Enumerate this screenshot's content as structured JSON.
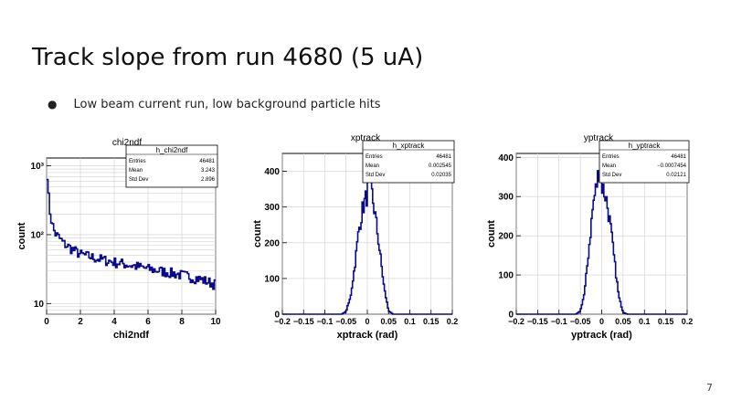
{
  "slide": {
    "title": "Track slope from run 4680 (5 uA)",
    "bullet": "Low beam current run, low background particle hits",
    "bullet_symbol": "●",
    "page_number": "7"
  },
  "chart_data": [
    {
      "type": "line",
      "title": "chi2ndf",
      "xlabel": "chi2ndf",
      "ylabel": "count",
      "xlim": [
        0,
        10
      ],
      "ylim": [
        7,
        1300
      ],
      "yscale": "log",
      "x_ticks": [
        "0",
        "2",
        "4",
        "6",
        "8",
        "10"
      ],
      "y_ticks": [
        "10",
        "10²",
        "10³"
      ],
      "grid": true,
      "color": "#0a0a8a",
      "stats": {
        "name": "h_chi2ndf",
        "rows": [
          {
            "label": "Entries",
            "value": "46481"
          },
          {
            "label": "Mean",
            "value": "3.243"
          },
          {
            "label": "Std Dev",
            "value": "2.896"
          }
        ]
      },
      "x": [
        0,
        0.05,
        0.1,
        0.15,
        0.2,
        0.3,
        0.4,
        0.5,
        0.75,
        1,
        1.5,
        2,
        3,
        4,
        5,
        6,
        7,
        8,
        9,
        10
      ],
      "y": [
        1100,
        700,
        420,
        280,
        220,
        160,
        125,
        105,
        90,
        75,
        62,
        52,
        45,
        40,
        36,
        32,
        29,
        26,
        23,
        19
      ]
    },
    {
      "type": "line",
      "title": "xptrack",
      "xlabel": "xptrack (rad)",
      "ylabel": "count",
      "xlim": [
        -0.2,
        0.2
      ],
      "ylim": [
        0,
        450
      ],
      "x_ticks": [
        "−0.2",
        "−0.15",
        "−0.1",
        "−0.05",
        "0",
        "0.05",
        "0.1",
        "0.15",
        "0.2"
      ],
      "y_ticks": [
        "0",
        "100",
        "200",
        "300",
        "400"
      ],
      "grid": true,
      "color": "#0a0a8a",
      "stats": {
        "name": "h_xptrack",
        "rows": [
          {
            "label": "Entries",
            "value": "46481"
          },
          {
            "label": "Mean",
            "value": "0.002545"
          },
          {
            "label": "Std Dev",
            "value": "0.02035"
          }
        ]
      },
      "x": [
        -0.06,
        -0.05,
        -0.04,
        -0.03,
        -0.02,
        -0.01,
        0,
        0.005,
        0.01,
        0.02,
        0.03,
        0.04,
        0.05,
        0.06
      ],
      "y": [
        0,
        8,
        45,
        130,
        235,
        300,
        335,
        410,
        345,
        265,
        170,
        70,
        10,
        0
      ]
    },
    {
      "type": "line",
      "title": "yptrack",
      "xlabel": "yptrack (rad)",
      "ylabel": "count",
      "xlim": [
        -0.2,
        0.2
      ],
      "ylim": [
        0,
        410
      ],
      "x_ticks": [
        "−0.2",
        "−0.15",
        "−0.1",
        "−0.05",
        "0",
        "0.05",
        "0.1",
        "0.15",
        "0.2"
      ],
      "y_ticks": [
        "0",
        "100",
        "200",
        "300",
        "400"
      ],
      "grid": true,
      "color": "#0a0a8a",
      "stats": {
        "name": "h_yptrack",
        "rows": [
          {
            "label": "Entries",
            "value": "46481"
          },
          {
            "label": "Mean",
            "value": "−0.0007454"
          },
          {
            "label": "Std Dev",
            "value": "0.02121"
          }
        ]
      },
      "x": [
        -0.06,
        -0.05,
        -0.04,
        -0.03,
        -0.02,
        -0.01,
        -0.005,
        0,
        0.01,
        0.02,
        0.03,
        0.04,
        0.05,
        0.06
      ],
      "y": [
        0,
        8,
        55,
        165,
        280,
        340,
        380,
        330,
        300,
        230,
        135,
        45,
        5,
        0
      ]
    }
  ]
}
